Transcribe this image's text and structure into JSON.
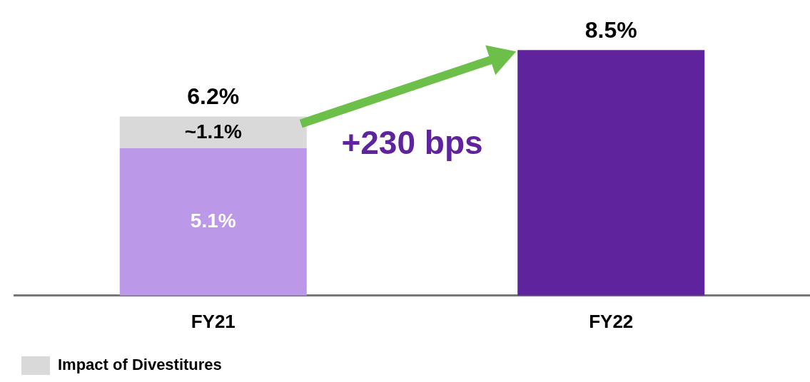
{
  "chart_data": {
    "type": "bar",
    "stacked": true,
    "categories": [
      "FY21",
      "FY22"
    ],
    "series": [
      {
        "colors": [
          "#bb98e8",
          "#5e239d"
        ],
        "values": [
          5.1,
          8.5
        ],
        "value_labels": [
          "5.1%",
          null
        ]
      },
      {
        "name": "Impact of Divestitures",
        "color": "#d9d9d9",
        "values": [
          1.1,
          null
        ],
        "value_labels": [
          "~1.1%",
          null
        ]
      }
    ],
    "totals": [
      "6.2%",
      "8.5%"
    ],
    "annotations": [
      "+230 bps"
    ],
    "tick_labels": "x",
    "grid": false,
    "legend": "bottom left"
  }
}
